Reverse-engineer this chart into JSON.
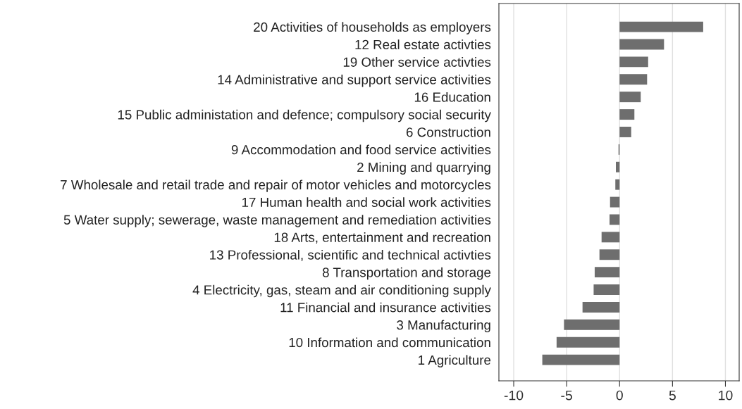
{
  "chart_data": {
    "type": "bar",
    "orientation": "horizontal",
    "categories": [
      "20 Activities of households as employers",
      "12 Real estate activties",
      "19 Other service activties",
      "14 Administrative and support service activities",
      "16 Education",
      "15 Public administation and defence; compulsory social security",
      "6 Construction",
      "9 Accommodation and food service activities",
      "2 Mining and quarrying",
      "7 Wholesale and retail trade and repair of motor vehicles and motorcycles",
      "17 Human health and social work activities",
      "5 Water supply; sewerage, waste management and remediation activities",
      "18 Arts, entertainment and recreation",
      "13 Professional, scientific and technical activties",
      "8 Transportation and storage",
      "4 Electricity, gas, steam and air conditioning supply",
      "11 Financial and insurance activities",
      "3 Manufacturing",
      "10 Information and communication",
      "1 Agriculture"
    ],
    "values": [
      7.9,
      4.2,
      2.7,
      2.6,
      2.0,
      1.4,
      1.1,
      -0.1,
      -0.35,
      -0.4,
      -0.9,
      -0.95,
      -1.7,
      -1.9,
      -2.35,
      -2.45,
      -3.5,
      -5.25,
      -5.95,
      -7.3
    ],
    "color": "#6e6e6e",
    "xlim": [
      -11.4,
      11.3
    ],
    "xticks": [
      -10,
      -5,
      0,
      5,
      10
    ],
    "grid": "x",
    "legend": false
  }
}
